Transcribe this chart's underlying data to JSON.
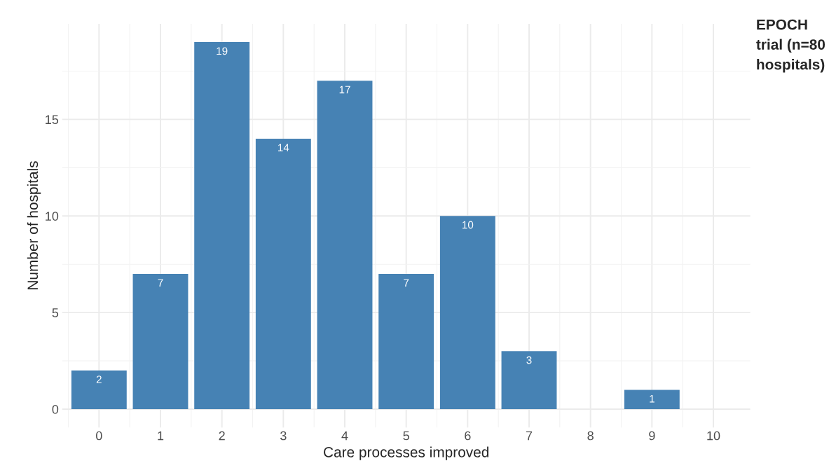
{
  "chart_data": {
    "type": "bar",
    "title": "EPOCH trial (n=80 hospitals)",
    "xlabel": "Care processes improved",
    "ylabel": "Number of hospitals",
    "categories": [
      "0",
      "1",
      "2",
      "3",
      "4",
      "5",
      "6",
      "7",
      "8",
      "9",
      "10"
    ],
    "values": [
      2,
      7,
      19,
      14,
      17,
      7,
      10,
      3,
      0,
      1,
      0
    ],
    "value_labels": [
      "2",
      "7",
      "19",
      "14",
      "17",
      "7",
      "10",
      "3",
      null,
      "1",
      null
    ],
    "color": "#4682b4",
    "ylim": [
      -0.95,
      19.95
    ],
    "yticks": [
      0,
      5,
      10,
      15
    ],
    "grid": true
  }
}
